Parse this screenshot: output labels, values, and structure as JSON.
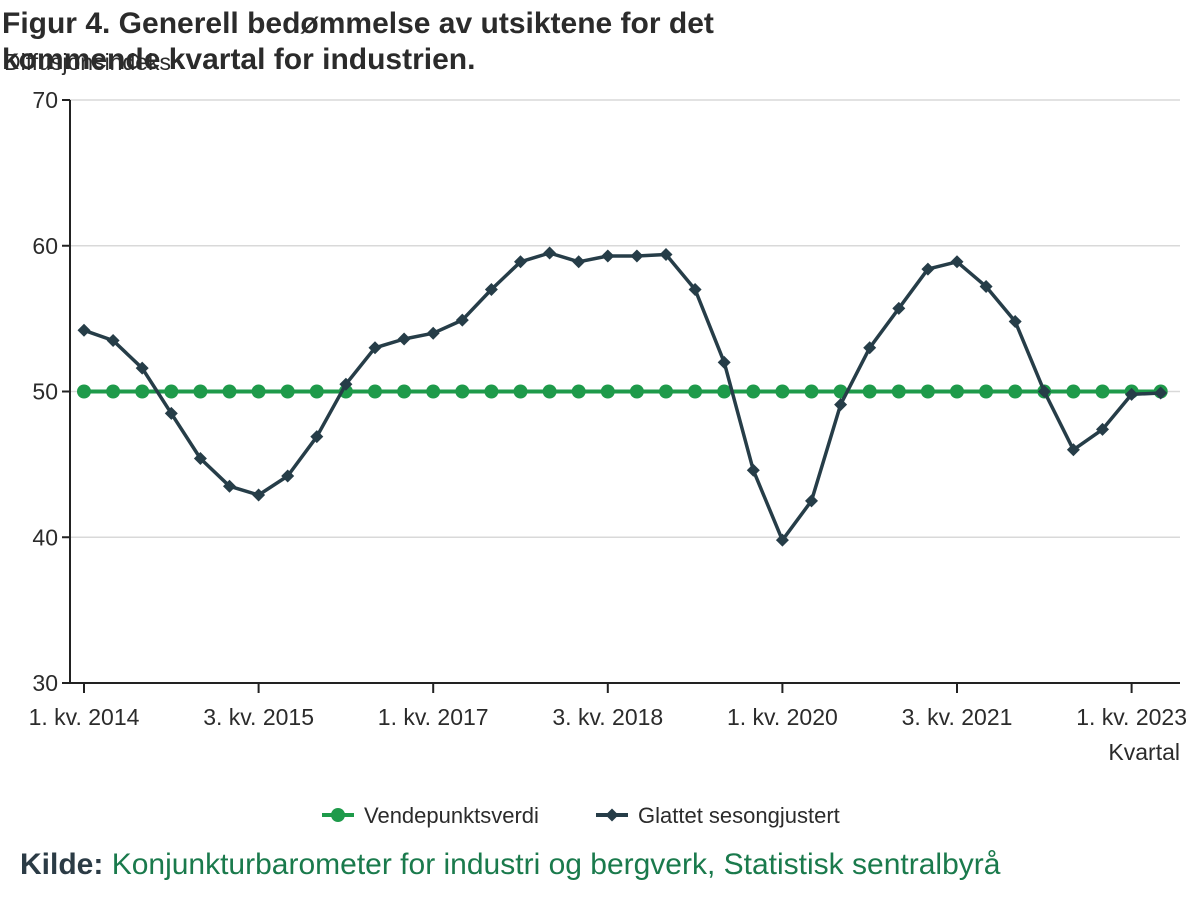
{
  "chart_data": {
    "type": "line",
    "title": "Figur 4. Generell bedømmelse av utsiktene for det kommende kvartal for industrien.",
    "ylabel": "Diffusjonsindeks",
    "xlabel": "Kvartal",
    "ylim": [
      30,
      70
    ],
    "yticks": [
      30,
      40,
      50,
      60,
      70
    ],
    "grid": true,
    "legend_position": "bottom",
    "x": [
      "1. kv. 2014",
      "2. kv. 2014",
      "3. kv. 2014",
      "4. kv. 2014",
      "1. kv. 2015",
      "2. kv. 2015",
      "3. kv. 2015",
      "4. kv. 2015",
      "1. kv. 2016",
      "2. kv. 2016",
      "3. kv. 2016",
      "4. kv. 2016",
      "1. kv. 2017",
      "2. kv. 2017",
      "3. kv. 2017",
      "4. kv. 2017",
      "1. kv. 2018",
      "2. kv. 2018",
      "3. kv. 2018",
      "4. kv. 2018",
      "1. kv. 2019",
      "2. kv. 2019",
      "3. kv. 2019",
      "4. kv. 2019",
      "1. kv. 2020",
      "2. kv. 2020",
      "3. kv. 2020",
      "4. kv. 2020",
      "1. kv. 2021",
      "2. kv. 2021",
      "3. kv. 2021",
      "4. kv. 2021",
      "1. kv. 2022",
      "2. kv. 2022",
      "3. kv. 2022",
      "4. kv. 2022",
      "1. kv. 2023",
      "2. kv. 2023"
    ],
    "tick_labels": [
      "1. kv. 2014",
      "3. kv. 2015",
      "1. kv. 2017",
      "3. kv. 2018",
      "1. kv. 2020",
      "3. kv. 2021",
      "1. kv. 2023"
    ],
    "series": [
      {
        "name": "Vendepunktsverdi",
        "color": "#1e9a4a",
        "marker": "circle",
        "values": [
          50,
          50,
          50,
          50,
          50,
          50,
          50,
          50,
          50,
          50,
          50,
          50,
          50,
          50,
          50,
          50,
          50,
          50,
          50,
          50,
          50,
          50,
          50,
          50,
          50,
          50,
          50,
          50,
          50,
          50,
          50,
          50,
          50,
          50,
          50,
          50,
          50,
          50
        ]
      },
      {
        "name": "Glattet sesongjustert",
        "color": "#263d48",
        "marker": "diamond",
        "values": [
          54.2,
          53.5,
          51.6,
          48.5,
          45.4,
          43.5,
          42.9,
          44.2,
          46.9,
          50.5,
          53.0,
          53.6,
          54.0,
          54.9,
          57.0,
          58.9,
          59.5,
          58.9,
          59.3,
          59.3,
          59.4,
          57.0,
          52.0,
          44.6,
          39.8,
          42.5,
          49.1,
          53.0,
          55.7,
          58.4,
          58.9,
          57.2,
          54.8,
          50.0,
          46.0,
          47.4,
          49.8,
          49.9
        ]
      }
    ]
  },
  "source": {
    "label": "Kilde:",
    "text": "Konjunkturbarometer for industri og bergverk, Statistisk sentralbyrå"
  }
}
